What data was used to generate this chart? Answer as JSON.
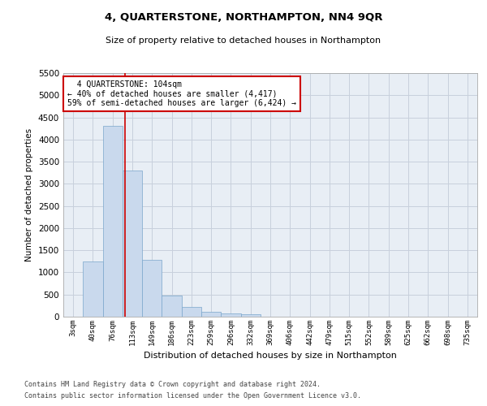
{
  "title": "4, QUARTERSTONE, NORTHAMPTON, NN4 9QR",
  "subtitle": "Size of property relative to detached houses in Northampton",
  "xlabel": "Distribution of detached houses by size in Northampton",
  "ylabel": "Number of detached properties",
  "categories": [
    "3sqm",
    "40sqm",
    "76sqm",
    "113sqm",
    "149sqm",
    "186sqm",
    "223sqm",
    "259sqm",
    "296sqm",
    "332sqm",
    "369sqm",
    "406sqm",
    "442sqm",
    "479sqm",
    "515sqm",
    "552sqm",
    "589sqm",
    "625sqm",
    "662sqm",
    "698sqm",
    "735sqm"
  ],
  "values": [
    0,
    1250,
    4300,
    3300,
    1280,
    480,
    220,
    110,
    70,
    60,
    0,
    0,
    0,
    0,
    0,
    0,
    0,
    0,
    0,
    0,
    0
  ],
  "bar_color": "#c9d9ed",
  "bar_edge_color": "#7aa6cc",
  "redline_index": 2.62,
  "annotation_title": "4 QUARTERSTONE: 104sqm",
  "annotation_line1": "← 40% of detached houses are smaller (4,417)",
  "annotation_line2": "59% of semi-detached houses are larger (6,424) →",
  "ylim": [
    0,
    5500
  ],
  "yticks": [
    0,
    500,
    1000,
    1500,
    2000,
    2500,
    3000,
    3500,
    4000,
    4500,
    5000,
    5500
  ],
  "footnote1": "Contains HM Land Registry data © Crown copyright and database right 2024.",
  "footnote2": "Contains public sector information licensed under the Open Government Licence v3.0.",
  "bg_color": "#ffffff",
  "plot_bg_color": "#e8eef5",
  "grid_color": "#c8d0dc",
  "annotation_box_color": "#ffffff",
  "annotation_box_edge": "#cc0000",
  "redline_color": "#cc0000"
}
